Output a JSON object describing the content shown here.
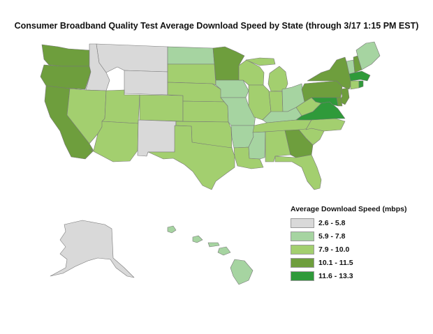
{
  "title": "Consumer Broadband Quality Test Average Download Speed by State (through 3/17 1:15 PM EST)",
  "legend": {
    "title": "Average Download Speed (mbps)",
    "classes": [
      {
        "label": "2.6 - 5.8",
        "color": "#d9d9d9"
      },
      {
        "label": "5.9 - 7.8",
        "color": "#a6d4a1"
      },
      {
        "label": "7.9 - 10.0",
        "color": "#a3cf6f"
      },
      {
        "label": "10.1 - 11.5",
        "color": "#6e9e3d"
      },
      {
        "label": "11.6 - 13.3",
        "color": "#2f9a3a"
      }
    ]
  },
  "map_data": {
    "type": "choropleth",
    "unit": "mbps",
    "regions": [
      {
        "state": "WA",
        "class": 3
      },
      {
        "state": "OR",
        "class": 3
      },
      {
        "state": "CA",
        "class": 3
      },
      {
        "state": "ID",
        "class": 0
      },
      {
        "state": "NV",
        "class": 2
      },
      {
        "state": "MT",
        "class": 0
      },
      {
        "state": "WY",
        "class": 0
      },
      {
        "state": "UT",
        "class": 2
      },
      {
        "state": "AZ",
        "class": 2
      },
      {
        "state": "CO",
        "class": 2
      },
      {
        "state": "NM",
        "class": 0
      },
      {
        "state": "ND",
        "class": 1
      },
      {
        "state": "SD",
        "class": 2
      },
      {
        "state": "NE",
        "class": 2
      },
      {
        "state": "KS",
        "class": 2
      },
      {
        "state": "OK",
        "class": 2
      },
      {
        "state": "TX",
        "class": 2
      },
      {
        "state": "MN",
        "class": 3
      },
      {
        "state": "IA",
        "class": 1
      },
      {
        "state": "MO",
        "class": 1
      },
      {
        "state": "AR",
        "class": 1
      },
      {
        "state": "LA",
        "class": 2
      },
      {
        "state": "WI",
        "class": 2
      },
      {
        "state": "IL",
        "class": 2
      },
      {
        "state": "MI",
        "class": 2
      },
      {
        "state": "IN",
        "class": 2
      },
      {
        "state": "OH",
        "class": 1
      },
      {
        "state": "KY",
        "class": 1
      },
      {
        "state": "TN",
        "class": 2
      },
      {
        "state": "MS",
        "class": 1
      },
      {
        "state": "AL",
        "class": 2
      },
      {
        "state": "GA",
        "class": 3
      },
      {
        "state": "FL",
        "class": 2
      },
      {
        "state": "SC",
        "class": 2
      },
      {
        "state": "NC",
        "class": 2
      },
      {
        "state": "VA",
        "class": 4
      },
      {
        "state": "WV",
        "class": 2
      },
      {
        "state": "PA",
        "class": 3
      },
      {
        "state": "NY",
        "class": 3
      },
      {
        "state": "VT",
        "class": 1
      },
      {
        "state": "NH",
        "class": 3
      },
      {
        "state": "ME",
        "class": 1
      },
      {
        "state": "MA",
        "class": 4
      },
      {
        "state": "RI",
        "class": 4
      },
      {
        "state": "CT",
        "class": 2
      },
      {
        "state": "NJ",
        "class": 3
      },
      {
        "state": "DE",
        "class": 3
      },
      {
        "state": "MD",
        "class": 4
      },
      {
        "state": "AK",
        "class": 0
      },
      {
        "state": "HI",
        "class": 1
      }
    ]
  }
}
